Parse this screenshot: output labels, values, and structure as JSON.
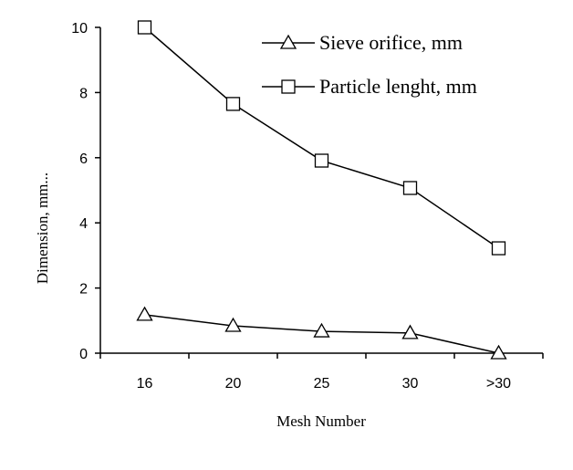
{
  "chart_data": {
    "type": "line",
    "x_label": "Mesh Number",
    "y_label": "Dimension, mm...",
    "categories": [
      "16",
      "20",
      "25",
      "30",
      ">30"
    ],
    "series": [
      {
        "name": "Sieve orifice, mm",
        "color": "#000000",
        "marker": "triangle",
        "values": [
          1.18,
          0.84,
          0.67,
          0.62,
          0
        ]
      },
      {
        "name": "Particle lenght, mm",
        "color": "#000000",
        "marker": "square",
        "values": [
          10.0,
          7.65,
          5.91,
          5.07,
          3.22
        ]
      }
    ],
    "ylim": [
      0,
      10
    ],
    "yticks": [
      0,
      2,
      4,
      6,
      8,
      10
    ],
    "legend": "top-right",
    "grid": false
  }
}
